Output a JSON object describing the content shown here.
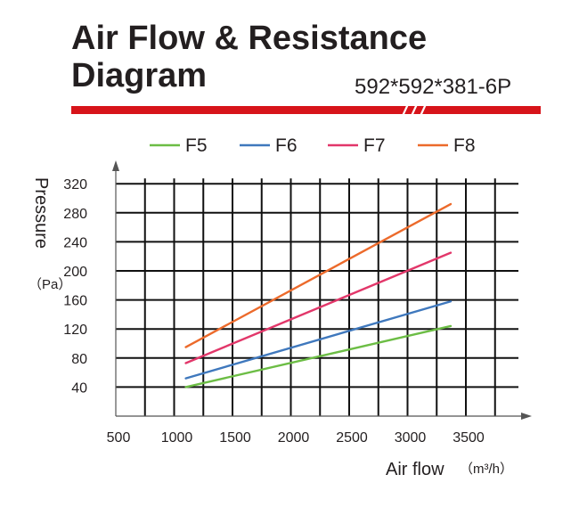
{
  "header": {
    "title_line1": "Air Flow & Resistance",
    "title_line2": "Diagram",
    "model": "592*592*381-6P",
    "bar_color": "#d7141a"
  },
  "chart_data": {
    "type": "line",
    "ylabel": "Pressure",
    "ylabel_unit": "（Pa）",
    "xlabel": "Air flow",
    "xlabel_unit": "（m³/h）",
    "xlim": [
      500,
      4000
    ],
    "ylim": [
      0,
      320
    ],
    "xticks": [
      500,
      1000,
      1500,
      2000,
      2500,
      3000,
      3500
    ],
    "yticks": [
      40,
      80,
      120,
      160,
      200,
      240,
      280,
      320
    ],
    "grid": true,
    "legend_position": "top",
    "series": [
      {
        "name": "F5",
        "color": "#6cbd45",
        "x": [
          1100,
          3370
        ],
        "y": [
          40,
          124
        ]
      },
      {
        "name": "F6",
        "color": "#3f78bd",
        "x": [
          1100,
          3370
        ],
        "y": [
          52,
          158
        ]
      },
      {
        "name": "F7",
        "color": "#e2376a",
        "x": [
          1100,
          3370
        ],
        "y": [
          73,
          225
        ]
      },
      {
        "name": "F8",
        "color": "#ec6a2b",
        "x": [
          1100,
          3370
        ],
        "y": [
          95,
          292
        ]
      }
    ]
  }
}
